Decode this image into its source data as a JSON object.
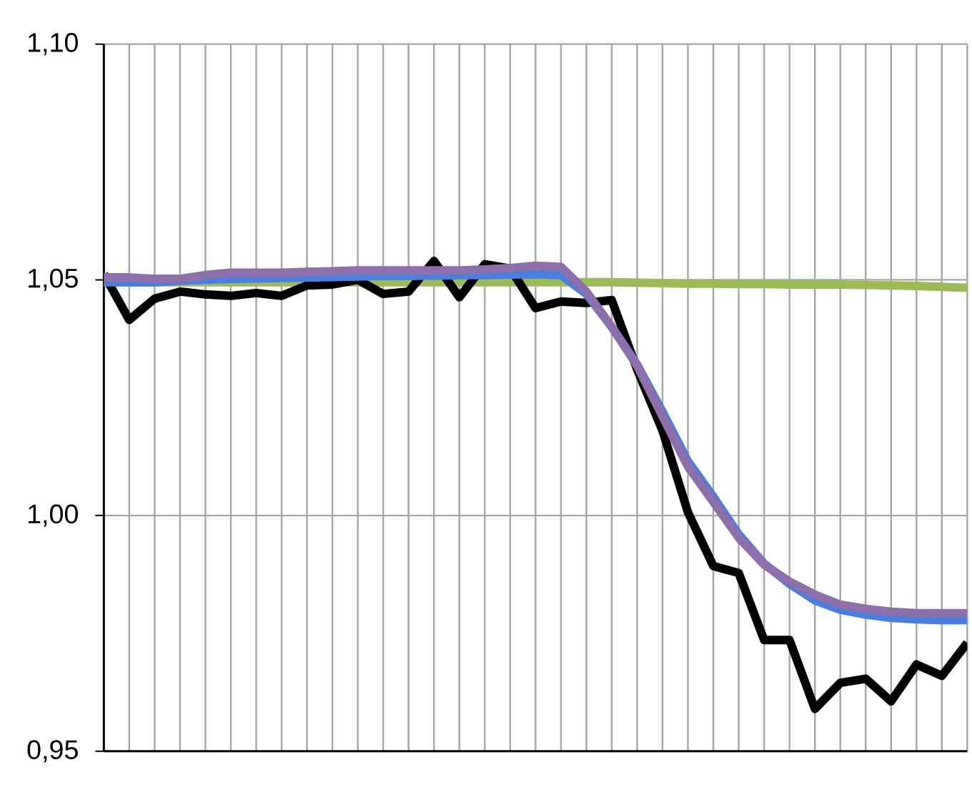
{
  "chart_data": {
    "type": "line",
    "categories": [
      null,
      null,
      null,
      null,
      null,
      null,
      null,
      null,
      null,
      null,
      null,
      null,
      null,
      null,
      null,
      null,
      null,
      null,
      null,
      null,
      null,
      null,
      null,
      null,
      null,
      null,
      null,
      null,
      null,
      null,
      null,
      null,
      null,
      null,
      null
    ],
    "series": [
      {
        "color": "#9bbb59",
        "values": [
          1.0495,
          1.0495,
          1.0495,
          1.0495,
          1.0495,
          1.0495,
          1.0495,
          1.0495,
          1.0495,
          1.0495,
          1.0495,
          1.0495,
          1.0495,
          1.0495,
          1.0495,
          1.0495,
          1.0495,
          1.0495,
          1.0495,
          1.0495,
          1.0495,
          1.0494,
          1.0493,
          1.0492,
          1.0492,
          1.0491,
          1.0491,
          1.049,
          1.049,
          1.049,
          1.0489,
          1.0488,
          1.0487,
          1.0485,
          1.0483
        ]
      },
      {
        "color": "#000000",
        "values": [
          1.0512,
          1.0415,
          1.046,
          1.0475,
          1.0469,
          1.0466,
          1.0472,
          1.0466,
          1.0488,
          1.049,
          1.05,
          1.047,
          1.0475,
          1.054,
          1.0463,
          1.0533,
          1.0524,
          1.044,
          1.0454,
          1.0451,
          1.0457,
          1.031,
          1.018,
          1.0007,
          0.9893,
          0.9878,
          0.9736,
          0.9736,
          0.959,
          0.9645,
          0.9654,
          0.9606,
          0.9684,
          0.966,
          0.973
        ]
      },
      {
        "color": "#4a7fe0",
        "values": [
          1.0495,
          1.0495,
          1.0495,
          1.0498,
          1.05,
          1.0502,
          1.0503,
          1.0504,
          1.0505,
          1.0506,
          1.0507,
          1.0508,
          1.0508,
          1.0509,
          1.051,
          1.051,
          1.0511,
          1.0512,
          1.051,
          1.047,
          1.04,
          1.032,
          1.022,
          1.0115,
          1.004,
          0.996,
          0.9898,
          0.9855,
          0.982,
          0.98,
          0.979,
          0.9783,
          0.978,
          0.9778,
          0.9778
        ]
      },
      {
        "color": "#8d6fab",
        "values": [
          1.0505,
          1.0505,
          1.0502,
          1.0502,
          1.051,
          1.0515,
          1.0515,
          1.0515,
          1.0517,
          1.0518,
          1.052,
          1.052,
          1.052,
          1.052,
          1.052,
          1.0522,
          1.0525,
          1.053,
          1.0527,
          1.0475,
          1.04,
          1.0318,
          1.021,
          1.0104,
          1.0029,
          0.9953,
          0.9896,
          0.986,
          0.9832,
          0.9811,
          0.9802,
          0.9796,
          0.9793,
          0.9793,
          0.9793
        ]
      }
    ],
    "ylim": [
      0.95,
      1.1
    ],
    "yticks": [
      {
        "value": 0.95,
        "label": "0,95"
      },
      {
        "value": 1.0,
        "label": "1,00"
      },
      {
        "value": 1.05,
        "label": "1,05"
      },
      {
        "value": 1.1,
        "label": "1,10"
      }
    ],
    "grid": true,
    "tick_labels": "y",
    "marker": "none",
    "line_style": "solid"
  }
}
